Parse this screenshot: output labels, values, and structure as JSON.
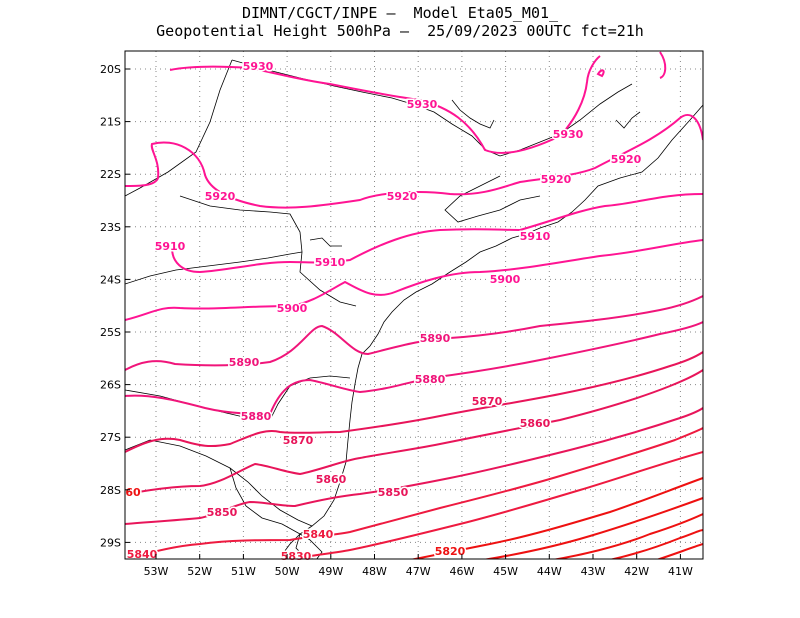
{
  "title_line1": "DIMNT/CGCT/INPE —  Model Eta05_M01_",
  "title_line2": "Geopotential Height 500hPa —  25/09/2023 00UTC fct=21h",
  "lon_ticks": [
    "53W",
    "52W",
    "51W",
    "50W",
    "49W",
    "48W",
    "47W",
    "46W",
    "45W",
    "44W",
    "43W",
    "42W",
    "41W"
  ],
  "lat_ticks": [
    "20S",
    "21S",
    "22S",
    "23S",
    "24S",
    "25S",
    "26S",
    "27S",
    "28S",
    "29S"
  ],
  "contour_labels": [
    "5930",
    "5930",
    "5930",
    "5920",
    "5920",
    "5920",
    "5920",
    "5910",
    "5910",
    "5910",
    "5900",
    "5900",
    "5890",
    "5890",
    "5880",
    "5880",
    "5870",
    "5870",
    "5860",
    "5860",
    "5850",
    "5850",
    "5840",
    "5840",
    "5830",
    "5820",
    "60"
  ],
  "colors": {
    "high": "#ff1493",
    "mid": "#e8155a",
    "low": "#ee1111",
    "coast": "#000000",
    "grid": "#888888"
  }
}
